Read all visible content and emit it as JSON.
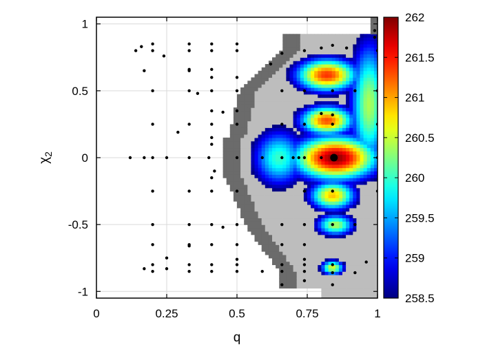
{
  "chart_data": {
    "type": "heatmap",
    "title": "",
    "xlabel": "q",
    "ylabel_main": "χ",
    "ylabel_sub": "2",
    "xlim": [
      0,
      1
    ],
    "ylim": [
      -1.05,
      1.05
    ],
    "x_ticks": [
      {
        "value": 0,
        "label": "0"
      },
      {
        "value": 0.25,
        "label": "0.25"
      },
      {
        "value": 0.5,
        "label": "0.5"
      },
      {
        "value": 0.75,
        "label": "0.75"
      },
      {
        "value": 1,
        "label": "1"
      }
    ],
    "y_ticks": [
      {
        "value": 1,
        "label": "1"
      },
      {
        "value": 0.5,
        "label": "0.5"
      },
      {
        "value": 0,
        "label": "0"
      },
      {
        "value": -0.5,
        "label": "-0.5"
      },
      {
        "value": -1,
        "label": "-1"
      }
    ],
    "grid": true,
    "colorbar": {
      "min": 258.5,
      "max": 262,
      "ticks": [
        {
          "value": 262,
          "label": "262"
        },
        {
          "value": 261.5,
          "label": "261.5"
        },
        {
          "value": 261,
          "label": "261"
        },
        {
          "value": 260.5,
          "label": "260.5"
        },
        {
          "value": 260,
          "label": "260"
        },
        {
          "value": 259.5,
          "label": "259.5"
        },
        {
          "value": 259,
          "label": "259"
        },
        {
          "value": 258.5,
          "label": "258.5"
        }
      ]
    },
    "colors": {
      "out_of_range_dark": "#6b6b6b",
      "out_of_range_light": "#bdbdbd",
      "grid": "#d9d9d9",
      "points": "#000000"
    },
    "hotspots": [
      {
        "q": 0.85,
        "chi2": 0.0,
        "value": 261.95,
        "sq": 0.11,
        "sc": 0.12
      },
      {
        "q": 0.82,
        "chi2": 0.62,
        "value": 261.4,
        "sq": 0.08,
        "sc": 0.09
      },
      {
        "q": 0.82,
        "chi2": 0.28,
        "value": 261.3,
        "sq": 0.07,
        "sc": 0.08
      },
      {
        "q": 0.84,
        "chi2": -0.28,
        "value": 260.9,
        "sq": 0.06,
        "sc": 0.08
      },
      {
        "q": 0.85,
        "chi2": -0.5,
        "value": 260.4,
        "sq": 0.05,
        "sc": 0.06
      },
      {
        "q": 0.65,
        "chi2": 0.0,
        "value": 260.0,
        "sq": 0.07,
        "sc": 0.16
      },
      {
        "q": 0.97,
        "chi2": 0.4,
        "value": 260.4,
        "sq": 0.05,
        "sc": 0.35
      },
      {
        "q": 0.84,
        "chi2": -0.82,
        "value": 260.6,
        "sq": 0.03,
        "sc": 0.04
      }
    ],
    "points": [
      [
        0.14,
        0.8
      ],
      [
        0.16,
        0.83
      ],
      [
        0.2,
        0.85
      ],
      [
        0.2,
        0.8
      ],
      [
        0.24,
        0.76
      ],
      [
        0.33,
        0.85
      ],
      [
        0.33,
        0.8
      ],
      [
        0.41,
        0.85
      ],
      [
        0.41,
        0.8
      ],
      [
        0.5,
        0.85
      ],
      [
        0.5,
        0.8
      ],
      [
        0.62,
        0.7
      ],
      [
        0.66,
        0.78
      ],
      [
        0.74,
        0.8
      ],
      [
        0.8,
        0.82
      ],
      [
        0.84,
        0.84
      ],
      [
        0.89,
        0.82
      ],
      [
        0.99,
        0.95
      ],
      [
        0.99,
        0.9
      ],
      [
        1.0,
        0.8
      ],
      [
        0.17,
        0.65
      ],
      [
        0.33,
        0.66
      ],
      [
        0.33,
        0.65
      ],
      [
        0.41,
        0.66
      ],
      [
        0.41,
        0.6
      ],
      [
        0.5,
        0.6
      ],
      [
        0.2,
        0.5
      ],
      [
        0.33,
        0.5
      ],
      [
        0.36,
        0.48
      ],
      [
        0.41,
        0.5
      ],
      [
        0.5,
        0.5
      ],
      [
        0.66,
        0.5
      ],
      [
        0.74,
        0.5
      ],
      [
        0.84,
        0.5
      ],
      [
        0.92,
        0.5
      ],
      [
        1.0,
        0.5
      ],
      [
        0.41,
        0.35
      ],
      [
        0.45,
        0.34
      ],
      [
        0.5,
        0.35
      ],
      [
        0.84,
        0.32
      ],
      [
        0.8,
        0.33
      ],
      [
        0.2,
        0.25
      ],
      [
        0.33,
        0.25
      ],
      [
        0.41,
        0.25
      ],
      [
        0.5,
        0.25
      ],
      [
        0.66,
        0.25
      ],
      [
        0.74,
        0.25
      ],
      [
        0.84,
        0.25
      ],
      [
        1.0,
        0.25
      ],
      [
        0.29,
        0.19
      ],
      [
        0.41,
        0.15
      ],
      [
        0.41,
        0.1
      ],
      [
        0.12,
        0.0
      ],
      [
        0.17,
        0.0
      ],
      [
        0.2,
        0.0
      ],
      [
        0.25,
        0.0
      ],
      [
        0.33,
        0.0
      ],
      [
        0.4,
        0.0
      ],
      [
        0.5,
        0.0
      ],
      [
        0.59,
        0.0
      ],
      [
        0.66,
        0.0
      ],
      [
        0.7,
        0.0
      ],
      [
        0.72,
        0.0
      ],
      [
        0.74,
        0.0
      ],
      [
        0.8,
        0.0
      ],
      [
        0.84,
        0.0
      ],
      [
        1.0,
        0.0
      ],
      [
        0.42,
        -0.1
      ],
      [
        0.41,
        -0.15
      ],
      [
        0.2,
        -0.25
      ],
      [
        0.33,
        -0.25
      ],
      [
        0.41,
        -0.25
      ],
      [
        0.5,
        -0.25
      ],
      [
        0.74,
        -0.25
      ],
      [
        0.84,
        -0.25
      ],
      [
        1.0,
        -0.25
      ],
      [
        0.2,
        -0.5
      ],
      [
        0.33,
        -0.5
      ],
      [
        0.41,
        -0.5
      ],
      [
        0.45,
        -0.52
      ],
      [
        0.5,
        -0.5
      ],
      [
        0.66,
        -0.5
      ],
      [
        0.74,
        -0.5
      ],
      [
        0.84,
        -0.5
      ],
      [
        0.92,
        -0.5
      ],
      [
        0.2,
        -0.65
      ],
      [
        0.33,
        -0.65
      ],
      [
        0.33,
        -0.66
      ],
      [
        0.41,
        -0.65
      ],
      [
        0.5,
        -0.65
      ],
      [
        0.66,
        -0.65
      ],
      [
        0.74,
        -0.65
      ],
      [
        0.25,
        -0.75
      ],
      [
        0.5,
        -0.76
      ],
      [
        0.74,
        -0.76
      ],
      [
        0.2,
        -0.8
      ],
      [
        0.33,
        -0.8
      ],
      [
        0.41,
        -0.8
      ],
      [
        0.5,
        -0.8
      ],
      [
        0.66,
        -0.8
      ],
      [
        0.74,
        -0.8
      ],
      [
        0.84,
        -0.8
      ],
      [
        0.96,
        -0.78
      ],
      [
        0.17,
        -0.83
      ],
      [
        0.2,
        -0.85
      ],
      [
        0.25,
        -0.83
      ],
      [
        0.33,
        -0.85
      ],
      [
        0.41,
        -0.85
      ],
      [
        0.5,
        -0.85
      ],
      [
        0.59,
        -0.85
      ],
      [
        0.66,
        -0.85
      ],
      [
        0.74,
        -0.85
      ],
      [
        0.84,
        -0.86
      ],
      [
        0.92,
        -0.86
      ],
      [
        0.66,
        -0.95
      ],
      [
        0.74,
        -0.92
      ],
      [
        0.84,
        -0.95
      ]
    ],
    "highlight_point": [
      0.845,
      0.0
    ]
  }
}
